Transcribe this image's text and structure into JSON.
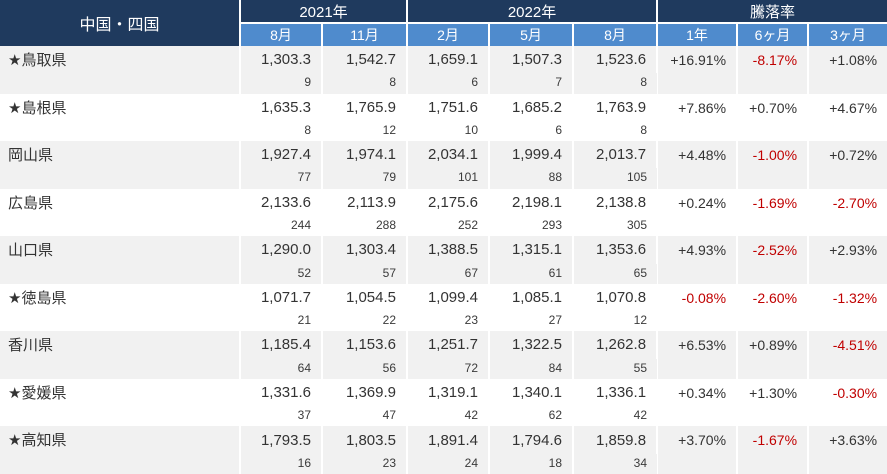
{
  "colors": {
    "header_navy": "#1f3a5e",
    "header_blue": "#4f8bcd",
    "negative_red": "#c00000",
    "stripe_gray": "#f1f1f1",
    "text_dark": "#333333"
  },
  "chart_data": {
    "type": "table",
    "title": "中国・四国",
    "column_groups": [
      {
        "label": "2021年",
        "columns": [
          "8月",
          "11月"
        ]
      },
      {
        "label": "2022年",
        "columns": [
          "2月",
          "5月",
          "8月"
        ]
      },
      {
        "label": "騰落率",
        "columns": [
          "1年",
          "6ヶ月",
          "3ヶ月"
        ]
      }
    ],
    "rows": [
      {
        "name": "★鳥取県",
        "values": [
          "1,303.3",
          "1,542.7",
          "1,659.1",
          "1,507.3",
          "1,523.6"
        ],
        "counts": [
          "9",
          "8",
          "6",
          "7",
          "8"
        ],
        "changes": [
          "+16.91%",
          "-8.17%",
          "+1.08%"
        ]
      },
      {
        "name": "★島根県",
        "values": [
          "1,635.3",
          "1,765.9",
          "1,751.6",
          "1,685.2",
          "1,763.9"
        ],
        "counts": [
          "8",
          "12",
          "10",
          "6",
          "8"
        ],
        "changes": [
          "+7.86%",
          "+0.70%",
          "+4.67%"
        ]
      },
      {
        "name": "岡山県",
        "values": [
          "1,927.4",
          "1,974.1",
          "2,034.1",
          "1,999.4",
          "2,013.7"
        ],
        "counts": [
          "77",
          "79",
          "101",
          "88",
          "105"
        ],
        "changes": [
          "+4.48%",
          "-1.00%",
          "+0.72%"
        ]
      },
      {
        "name": "広島県",
        "values": [
          "2,133.6",
          "2,113.9",
          "2,175.6",
          "2,198.1",
          "2,138.8"
        ],
        "counts": [
          "244",
          "288",
          "252",
          "293",
          "305"
        ],
        "changes": [
          "+0.24%",
          "-1.69%",
          "-2.70%"
        ]
      },
      {
        "name": "山口県",
        "values": [
          "1,290.0",
          "1,303.4",
          "1,388.5",
          "1,315.1",
          "1,353.6"
        ],
        "counts": [
          "52",
          "57",
          "67",
          "61",
          "65"
        ],
        "changes": [
          "+4.93%",
          "-2.52%",
          "+2.93%"
        ]
      },
      {
        "name": "★徳島県",
        "values": [
          "1,071.7",
          "1,054.5",
          "1,099.4",
          "1,085.1",
          "1,070.8"
        ],
        "counts": [
          "21",
          "22",
          "23",
          "27",
          "12"
        ],
        "changes": [
          "-0.08%",
          "-2.60%",
          "-1.32%"
        ]
      },
      {
        "name": "香川県",
        "values": [
          "1,185.4",
          "1,153.6",
          "1,251.7",
          "1,322.5",
          "1,262.8"
        ],
        "counts": [
          "64",
          "56",
          "72",
          "84",
          "55"
        ],
        "changes": [
          "+6.53%",
          "+0.89%",
          "-4.51%"
        ]
      },
      {
        "name": "★愛媛県",
        "values": [
          "1,331.6",
          "1,369.9",
          "1,319.1",
          "1,340.1",
          "1,336.1"
        ],
        "counts": [
          "37",
          "47",
          "42",
          "62",
          "42"
        ],
        "changes": [
          "+0.34%",
          "+1.30%",
          "-0.30%"
        ]
      },
      {
        "name": "★高知県",
        "values": [
          "1,793.5",
          "1,803.5",
          "1,891.4",
          "1,794.6",
          "1,859.8"
        ],
        "counts": [
          "16",
          "23",
          "24",
          "18",
          "34"
        ],
        "changes": [
          "+3.70%",
          "-1.67%",
          "+3.63%"
        ]
      }
    ]
  }
}
